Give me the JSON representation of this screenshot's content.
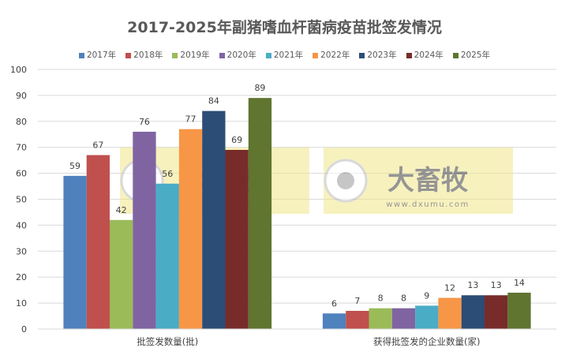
{
  "chart_data": {
    "type": "bar",
    "title": "2017-2025年副猪嗜血杆菌病疫苗批签发情况",
    "categories": [
      "批签发数量(批)",
      "获得批签发的企业数量(家)"
    ],
    "series": [
      {
        "name": "2017年",
        "color": "#4F81BD",
        "values": [
          59,
          6
        ]
      },
      {
        "name": "2018年",
        "color": "#C0504D",
        "values": [
          67,
          7
        ]
      },
      {
        "name": "2019年",
        "color": "#9BBB59",
        "values": [
          42,
          8
        ]
      },
      {
        "name": "2020年",
        "color": "#8064A2",
        "values": [
          76,
          8
        ]
      },
      {
        "name": "2021年",
        "color": "#4BACC6",
        "values": [
          56,
          9
        ]
      },
      {
        "name": "2022年",
        "color": "#F79646",
        "values": [
          77,
          12
        ]
      },
      {
        "name": "2023年",
        "color": "#2C4D75",
        "values": [
          84,
          13
        ]
      },
      {
        "name": "2024年",
        "color": "#772C2A",
        "values": [
          69,
          13
        ]
      },
      {
        "name": "2025年",
        "color": "#5F7530",
        "values": [
          89,
          14
        ]
      }
    ],
    "ylim": [
      0,
      100
    ],
    "yticks": [
      0,
      10,
      20,
      30,
      40,
      50,
      60,
      70,
      80,
      90,
      100
    ],
    "grid": true,
    "legend": "top",
    "xlabel": "",
    "ylabel": ""
  },
  "watermark": {
    "brand": "大畜牧",
    "url": "www.dxumu.com"
  }
}
